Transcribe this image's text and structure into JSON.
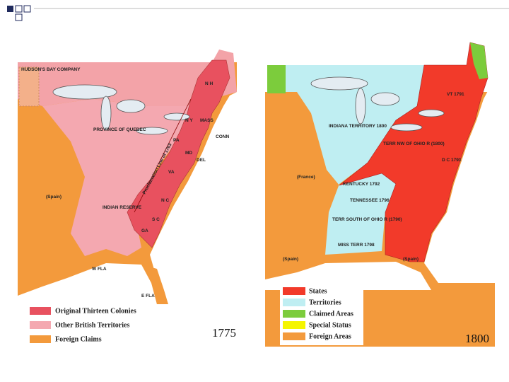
{
  "maps": [
    {
      "year": "1775",
      "legend": [
        "Original Thirteen Colonies",
        "Other British Territories",
        "Foreign Claims"
      ],
      "labels": [
        "HUDSON'S BAY COMPANY",
        "PROVINCE OF QUEBEC",
        "INDIAN RESERVE",
        "(Spain)",
        "Proclamation Line of 1763",
        "N Y",
        "PA",
        "VA",
        "N C",
        "S C",
        "GA",
        "MASS",
        "N H",
        "W FLA",
        "E FLA",
        "MD",
        "DEL",
        "CONN"
      ]
    },
    {
      "year": "1800",
      "legend": [
        "States",
        "Territories",
        "Claimed Areas",
        "Special Status",
        "Foreign Areas"
      ],
      "labels": [
        "INDIANA TERRITORY 1800",
        "TERR NW OF OHIO R (1800)",
        "KENTUCKY 1792",
        "TENNESSEE 1796",
        "TERR SOUTH OF OHIO R (1790)",
        "MISS TERR 1798",
        "(France)",
        "(Spain)",
        "(Spain)",
        "VT 1791",
        "D C 1791"
      ]
    }
  ]
}
